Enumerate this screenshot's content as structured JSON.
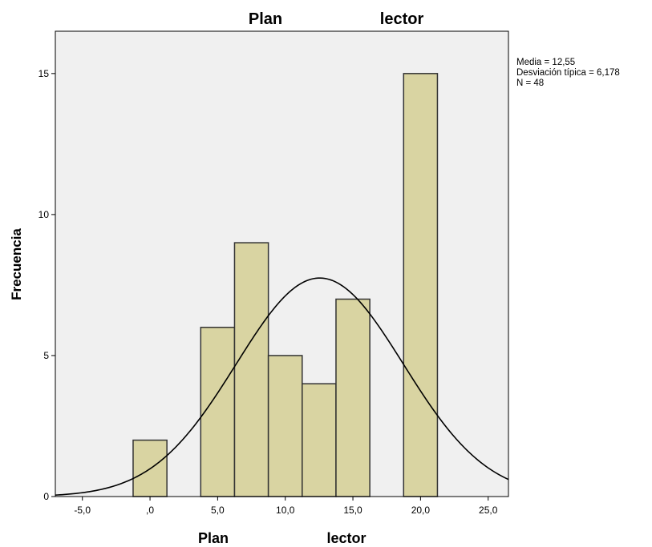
{
  "chart_data": {
    "type": "bar",
    "title_parts": [
      "Plan",
      "lector"
    ],
    "xlabel_parts": [
      "Plan",
      "lector"
    ],
    "ylabel": "Frecuencia",
    "bins": [
      {
        "from": -1.25,
        "to": 1.25,
        "count": 2
      },
      {
        "from": 3.75,
        "to": 6.25,
        "count": 6
      },
      {
        "from": 6.25,
        "to": 8.75,
        "count": 9
      },
      {
        "from": 8.75,
        "to": 11.25,
        "count": 5
      },
      {
        "from": 11.25,
        "to": 13.75,
        "count": 4
      },
      {
        "from": 13.75,
        "to": 16.25,
        "count": 7
      },
      {
        "from": 18.75,
        "to": 21.25,
        "count": 15
      }
    ],
    "xlim": [
      -7,
      26.5
    ],
    "ylim": [
      0,
      16.5
    ],
    "x_ticks": [
      -5,
      0,
      5,
      10,
      15,
      20,
      25
    ],
    "x_tick_labels": [
      "-5,0",
      ",0",
      "5,0",
      "10,0",
      "15,0",
      "20,0",
      "25,0"
    ],
    "y_ticks": [
      0,
      5,
      10,
      15
    ],
    "y_tick_labels": [
      "0",
      "5",
      "10",
      "15"
    ],
    "normal_curve": {
      "mean": 12.55,
      "sd": 6.178,
      "n": 48,
      "bin_width": 2.5
    },
    "stats_lines": [
      "Media = 12,55",
      "Desviación típica = 6,178",
      "N = 48"
    ],
    "legend_position": "right",
    "grid": false,
    "colors": {
      "plot_bg": "#f0f0f0",
      "bar_fill": "#d9d4a2",
      "bar_stroke": "#333333",
      "curve": "#000000"
    }
  }
}
